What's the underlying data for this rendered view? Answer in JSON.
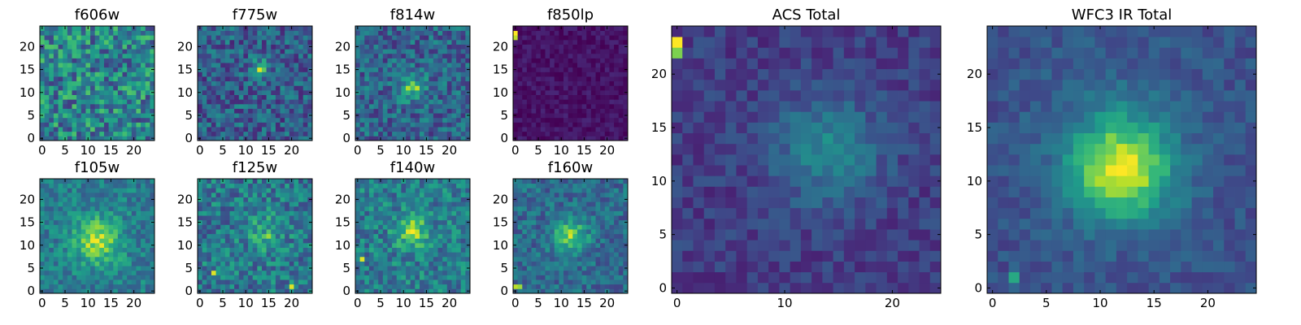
{
  "chart_data": [
    {
      "type": "heatmap",
      "title": "f606w",
      "x_ticks": [
        "0",
        "5",
        "10",
        "15",
        "20"
      ],
      "y_ticks": [
        "0",
        "5",
        "10",
        "15",
        "20"
      ],
      "grid_size": 25,
      "colormap": "viridis",
      "character": "uniform noise, brighter speckles scattered"
    },
    {
      "type": "heatmap",
      "title": "f775w",
      "x_ticks": [
        "0",
        "5",
        "10",
        "15",
        "20"
      ],
      "y_ticks": [
        "0",
        "5",
        "10",
        "15",
        "20"
      ],
      "grid_size": 25,
      "colormap": "viridis",
      "character": "noise with bright pixels near (13,15)"
    },
    {
      "type": "heatmap",
      "title": "f814w",
      "x_ticks": [
        "0",
        "5",
        "10",
        "15",
        "20"
      ],
      "y_ticks": [
        "0",
        "5",
        "10",
        "15",
        "20"
      ],
      "grid_size": 25,
      "colormap": "viridis",
      "character": "noise with bright pixels near (11-13,11)"
    },
    {
      "type": "heatmap",
      "title": "f850lp",
      "x_ticks": [
        "0",
        "5",
        "10",
        "15",
        "20"
      ],
      "y_ticks": [
        "0",
        "5",
        "10",
        "15",
        "20"
      ],
      "grid_size": 25,
      "colormap": "viridis",
      "character": "very dark noise, single bright pixel at (0,22)"
    },
    {
      "type": "heatmap",
      "title": "f105w",
      "x_ticks": [
        "0",
        "5",
        "10",
        "15",
        "20"
      ],
      "y_ticks": [
        "0",
        "5",
        "10",
        "15",
        "20"
      ],
      "grid_size": 25,
      "colormap": "viridis",
      "character": "bright diffuse source near (12,11)"
    },
    {
      "type": "heatmap",
      "title": "f125w",
      "x_ticks": [
        "0",
        "5",
        "10",
        "15",
        "20"
      ],
      "y_ticks": [
        "0",
        "5",
        "10",
        "15",
        "20"
      ],
      "grid_size": 25,
      "colormap": "viridis",
      "character": "mottled, bright spots near (3,4) and (20,1)"
    },
    {
      "type": "heatmap",
      "title": "f140w",
      "x_ticks": [
        "0",
        "5",
        "10",
        "15",
        "20"
      ],
      "y_ticks": [
        "0",
        "5",
        "10",
        "15",
        "20"
      ],
      "grid_size": 25,
      "colormap": "viridis",
      "character": "bright blob near (11-13,13)"
    },
    {
      "type": "heatmap",
      "title": "f160w",
      "x_ticks": [
        "0",
        "5",
        "10",
        "15",
        "20"
      ],
      "y_ticks": [
        "0",
        "5",
        "10",
        "15",
        "20"
      ],
      "grid_size": 25,
      "colormap": "viridis",
      "character": "source near (12,12), bright corner near (1,1)"
    },
    {
      "type": "heatmap",
      "title": "ACS Total",
      "x_ticks": [
        "0",
        "10",
        "20"
      ],
      "y_ticks": [
        "0",
        "5",
        "10",
        "15",
        "20"
      ],
      "grid_size": 25,
      "colormap": "viridis",
      "character": "dark background, faint source near (14,13), bright pixel at (0,23)"
    },
    {
      "type": "heatmap",
      "title": "WFC3 IR Total",
      "x_ticks": [
        "0",
        "5",
        "10",
        "15",
        "20"
      ],
      "y_ticks": [
        "0",
        "5",
        "10",
        "15",
        "20"
      ],
      "grid_size": 25,
      "colormap": "viridis",
      "character": "bright source peaking at (12,11)"
    }
  ]
}
